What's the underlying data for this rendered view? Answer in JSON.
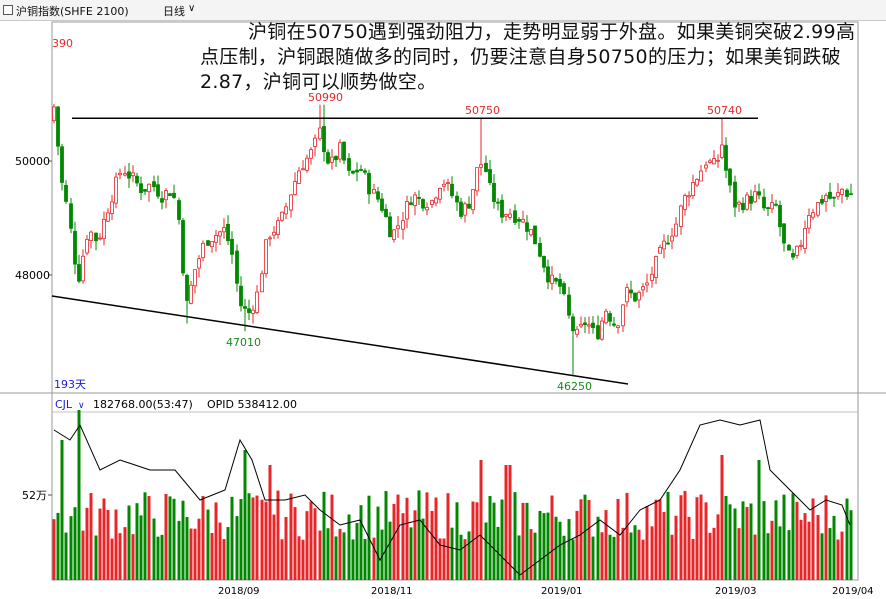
{
  "header": {
    "symbol": "沪铜指数(SHFE 2100)",
    "period": "日线"
  },
  "annotation": "沪铜在50750遇到强劲阻力，走势明显弱于外盘。如果美铜突破2.99高点压制，沪铜跟随做多的同时，仍要注意自身50750的压力；如果美铜跌破2.87，沪铜可以顺势做空。",
  "chart_data": {
    "type": "candlestick",
    "price_panel": {
      "y_ticks": [
        48000,
        50000
      ],
      "visible_top_label": "390",
      "bar_count_label": "193天",
      "up_color": "#e8262a",
      "down_color": "#008800",
      "price_labels": [
        {
          "text": "50990",
          "value": 50990
        },
        {
          "text": "50750",
          "value": 50750
        },
        {
          "text": "50740",
          "value": 50740
        },
        {
          "text": "47010",
          "value": 47010
        },
        {
          "text": "46250",
          "value": 46250
        }
      ],
      "resistance_line": {
        "value": 50750,
        "color": "#000000"
      },
      "support_trendline": {
        "color": "#000000"
      }
    },
    "volume_panel": {
      "indicator": "CJL",
      "volume_label": "182768.00(53:47)",
      "opid_label": "OPID 538412.00",
      "y_tick_label": "52万"
    },
    "x_ticks": [
      "2018/09",
      "2018/11",
      "2019/01",
      "2019/03",
      "2019/04"
    ]
  }
}
